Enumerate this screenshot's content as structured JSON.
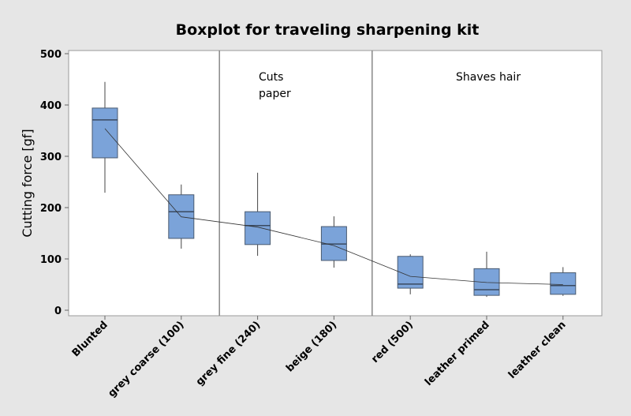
{
  "chart_data": {
    "type": "boxplot",
    "title": "Boxplot for traveling sharpening kit",
    "xlabel": "",
    "ylabel": "Cutting force [gf]",
    "ylim": [
      0,
      500
    ],
    "yticks": [
      0,
      100,
      200,
      300,
      400,
      500
    ],
    "grid": false,
    "box_color": "#7ba3d9",
    "categories": [
      "Blunted",
      "grey coarse (100)",
      "grey fine (240)",
      "beige (180)",
      "red (500)",
      "leather primed",
      "leather clean"
    ],
    "boxes": [
      {
        "whisker_low": 229,
        "q1": 297,
        "median": 371,
        "q3": 394,
        "whisker_high": 445,
        "mean": 354
      },
      {
        "whisker_low": 120,
        "q1": 140,
        "median": 192,
        "q3": 225,
        "whisker_high": 245,
        "mean": 182
      },
      {
        "whisker_low": 106,
        "q1": 128,
        "median": 165,
        "q3": 192,
        "whisker_high": 268,
        "mean": 162
      },
      {
        "whisker_low": 83,
        "q1": 97,
        "median": 129,
        "q3": 163,
        "whisker_high": 183,
        "mean": 126
      },
      {
        "whisker_low": 31,
        "q1": 43,
        "median": 51,
        "q3": 105,
        "whisker_high": 109,
        "mean": 66
      },
      {
        "whisker_low": 26,
        "q1": 29,
        "median": 40,
        "q3": 81,
        "whisker_high": 114,
        "mean": 54
      },
      {
        "whisker_low": 28,
        "q1": 31,
        "median": 48,
        "q3": 73,
        "whisker_high": 84,
        "mean": 50
      }
    ],
    "annotations": [
      {
        "text": [
          "Cuts",
          "paper"
        ],
        "after_category": 1
      },
      {
        "text": [
          "Shaves hair"
        ],
        "after_category": 3
      }
    ]
  }
}
